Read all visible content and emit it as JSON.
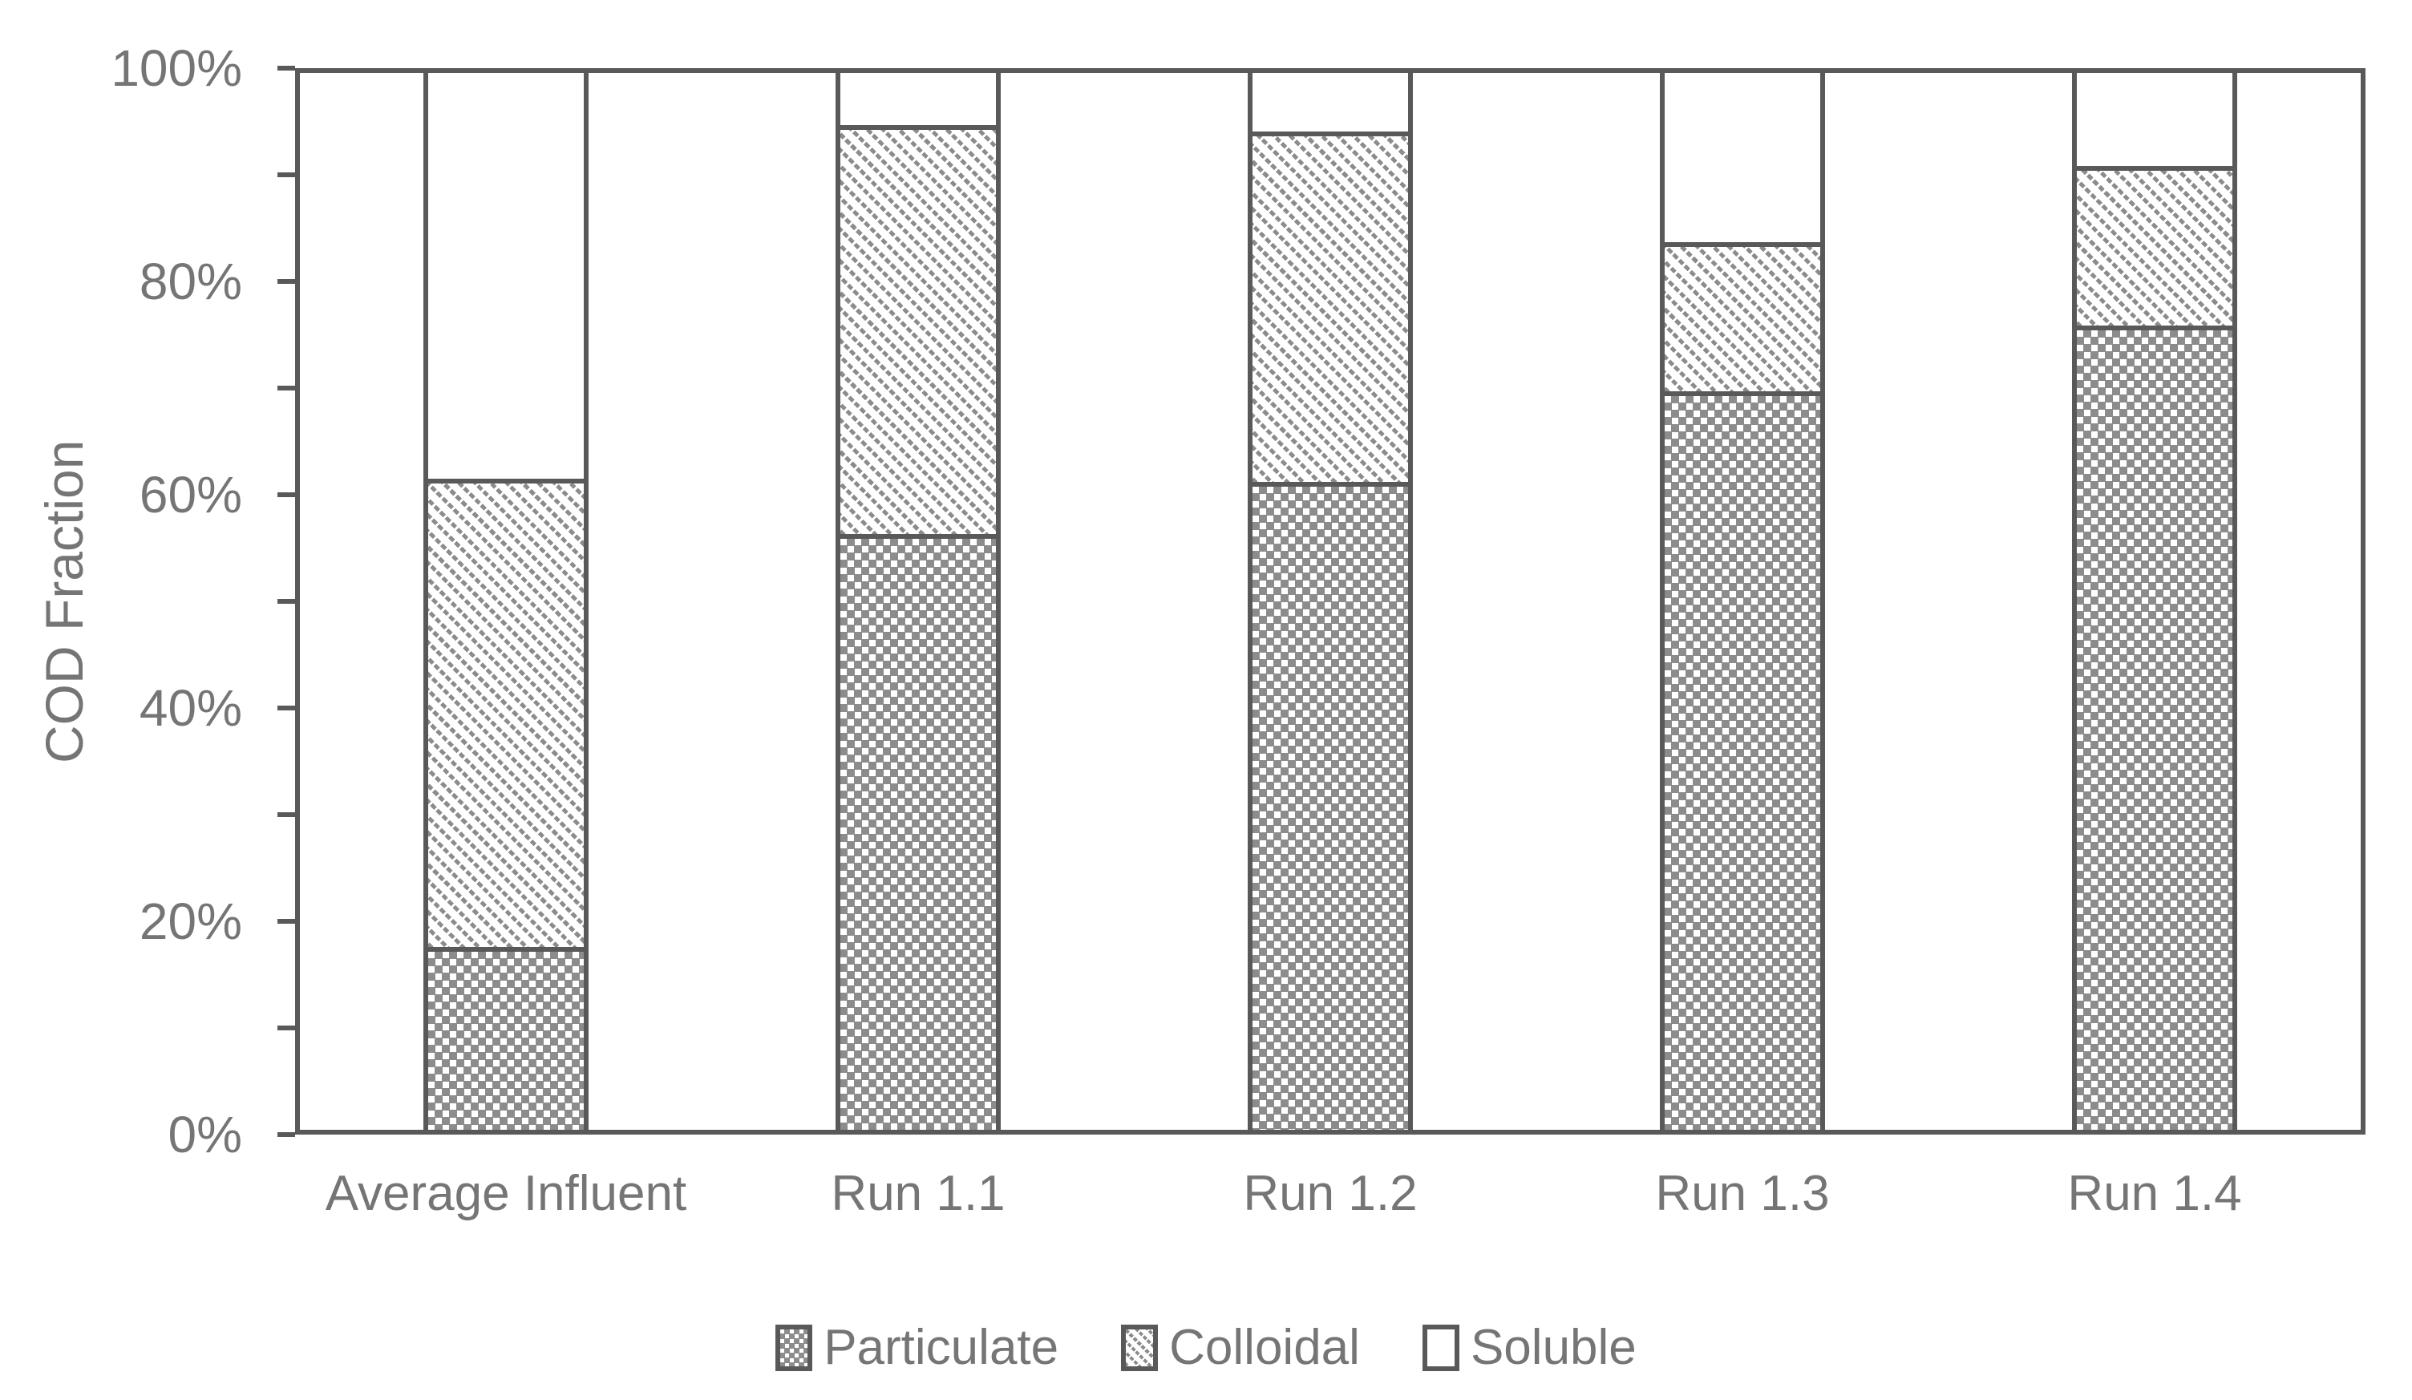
{
  "chart_data": {
    "type": "bar",
    "subtype": "stacked-100-percent",
    "title": "",
    "xlabel": "",
    "ylabel": "COD Fraction",
    "categories": [
      "Average Influent",
      "Run 1.1",
      "Run 1.2",
      "Run 1.3",
      "Run 1.4"
    ],
    "series": [
      {
        "name": "Particulate",
        "pattern": "gray-dotted-grid",
        "values": [
          17.3,
          56.4,
          61.3,
          69.9,
          76.1
        ]
      },
      {
        "name": "Colloidal",
        "pattern": "gray-diagonal-hatch",
        "values": [
          44.3,
          38.7,
          33.2,
          14.1,
          15.1
        ]
      },
      {
        "name": "Soluble",
        "pattern": "solid-white",
        "values": [
          38.4,
          4.9,
          5.5,
          16.0,
          8.8
        ]
      }
    ],
    "ylim": [
      0,
      100
    ],
    "y_tick_labels": [
      "0%",
      "20%",
      "40%",
      "60%",
      "80%",
      "100%"
    ],
    "y_labeled_tick_step": 20,
    "y_minor_tick_step": 10,
    "grid": false,
    "legend_position": "bottom",
    "colors": {
      "axis_and_border": "#595959",
      "pattern_gray": "#8C8C8C",
      "label_text": "#757575",
      "background": "#FFFFFF"
    }
  }
}
